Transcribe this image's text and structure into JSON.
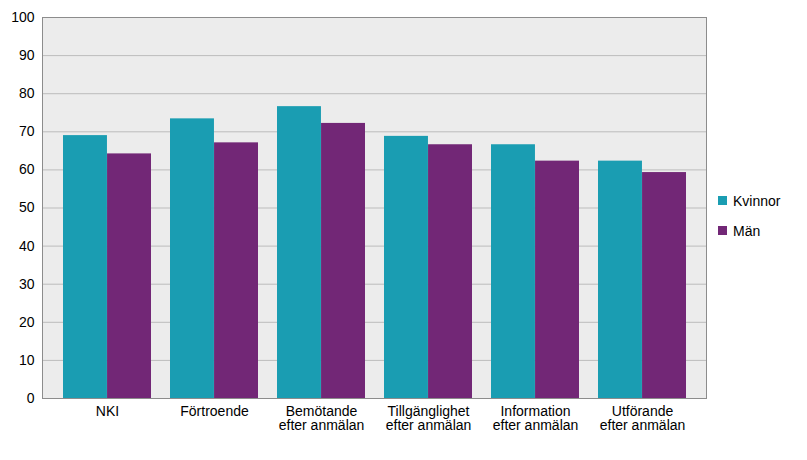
{
  "chart_data": {
    "type": "bar",
    "categories": [
      "NKI",
      "Förtroende",
      "Bemötande efter anmälan",
      "Tillgänglighet efter anmälan",
      "Information efter anmälan",
      "Utförande efter anmälan"
    ],
    "series": [
      {
        "name": "Kvinnor",
        "color": "#1a9db2",
        "values": [
          69.0,
          73.4,
          76.6,
          68.8,
          66.6,
          62.3
        ]
      },
      {
        "name": "Män",
        "color": "#722776",
        "values": [
          64.2,
          67.1,
          72.2,
          66.6,
          62.3,
          59.3
        ]
      }
    ],
    "ylim": [
      0,
      100
    ],
    "yticks": [
      0,
      10,
      20,
      30,
      40,
      50,
      60,
      70,
      80,
      90,
      100
    ],
    "grid": true,
    "legend": "right"
  }
}
